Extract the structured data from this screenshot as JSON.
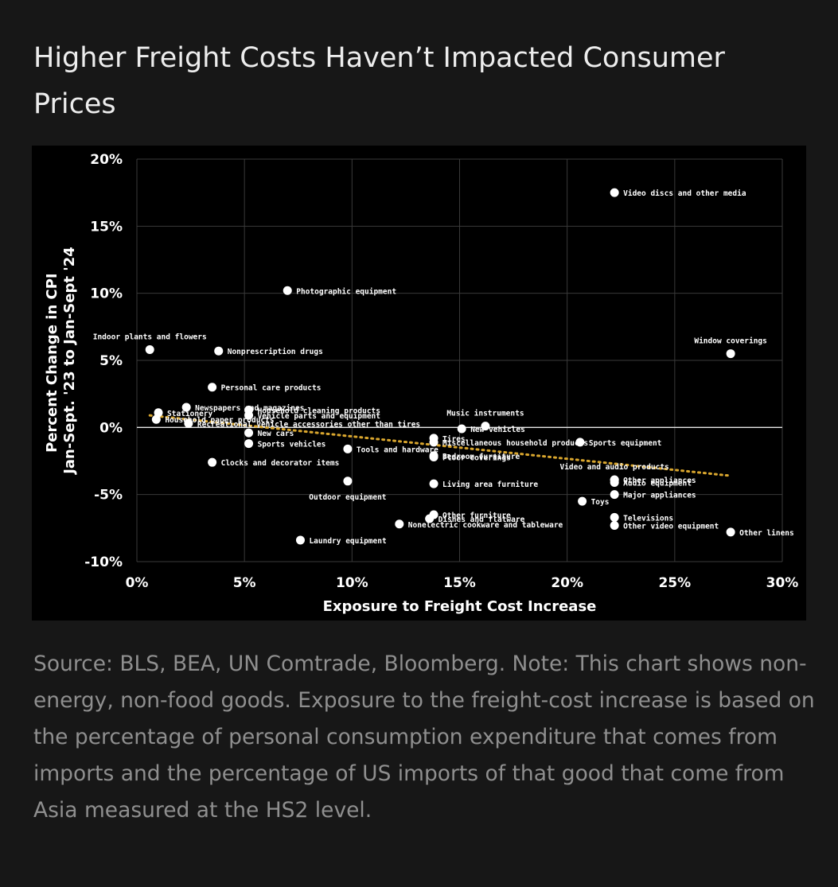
{
  "title": "Higher Freight Costs Haven’t Impacted Consumer Prices",
  "note": "Source: BLS, BEA, UN Comtrade, Bloomberg. Note: This chart shows non-energy, non-food goods. Exposure to the freight-cost increase is based on the percentage of personal consumption expenditure that comes from imports and the percentage of US imports of that good that come from Asia measured at the HS2 level.",
  "colors": {
    "background": "#171717",
    "plot": "#000000",
    "points": "#ffffff",
    "trendline": "#d9a62e",
    "title": "#ededed",
    "note": "#8f8f8f"
  },
  "chart_data": {
    "type": "scatter",
    "xlabel": "Exposure to Freight Cost Increase",
    "ylabel": [
      "Percent Change in CPI",
      "Jan-Sept. '23 to Jan-Sept '24"
    ],
    "xlim": [
      0,
      30
    ],
    "ylim": [
      -10,
      20
    ],
    "x_ticks": [
      0,
      5,
      10,
      15,
      20,
      25,
      30
    ],
    "y_ticks": [
      -10,
      -5,
      0,
      5,
      10,
      15,
      20
    ],
    "x_tick_labels": [
      "0%",
      "5%",
      "10%",
      "15%",
      "20%",
      "25%",
      "30%"
    ],
    "y_tick_labels": [
      "-10%",
      "-5%",
      "0%",
      "5%",
      "10%",
      "15%",
      "20%"
    ],
    "grid": true,
    "trendline": {
      "style": "dotted",
      "x": [
        0.6,
        27.6
      ],
      "y": [
        0.9,
        -3.6
      ]
    },
    "points": [
      {
        "label": "Video discs and other media",
        "x": 22.2,
        "y": 17.5
      },
      {
        "label": "Photographic equipment",
        "x": 7.0,
        "y": 10.2
      },
      {
        "label": "Indoor plants and flowers",
        "x": 0.6,
        "y": 5.8,
        "label_pos": "above"
      },
      {
        "label": "Nonprescription drugs",
        "x": 3.8,
        "y": 5.7
      },
      {
        "label": "Window coverings",
        "x": 27.6,
        "y": 5.5,
        "label_pos": "above"
      },
      {
        "label": "Personal care products",
        "x": 3.5,
        "y": 3.0
      },
      {
        "label": "Stationery",
        "x": 1.0,
        "y": 1.1
      },
      {
        "label": "Newspapers and magazines",
        "x": 2.3,
        "y": 1.5
      },
      {
        "label": "Household cleaning products",
        "x": 5.2,
        "y": 1.3
      },
      {
        "label": "Vehicle parts and equipment",
        "x": 5.2,
        "y": 0.9
      },
      {
        "label": "Household paper products",
        "x": 0.9,
        "y": 0.6
      },
      {
        "label": "Recreational vehicle accessories other than tires",
        "x": 2.4,
        "y": 0.3
      },
      {
        "label": "Music instruments",
        "x": 16.2,
        "y": 0.1,
        "label_pos": "above"
      },
      {
        "label": "New vehicles",
        "x": 15.1,
        "y": -0.1
      },
      {
        "label": "New cars",
        "x": 5.2,
        "y": -0.4
      },
      {
        "label": "Sports vehicles",
        "x": 5.2,
        "y": -1.2
      },
      {
        "label": "Tires",
        "x": 13.8,
        "y": -0.8
      },
      {
        "label": "Miscellaneous household products",
        "x": 13.8,
        "y": -1.1
      },
      {
        "label": "Sports equipment",
        "x": 20.6,
        "y": -1.1
      },
      {
        "label": "Tools and hardware",
        "x": 9.8,
        "y": -1.6
      },
      {
        "label": "Clocks and decorator items",
        "x": 3.5,
        "y": -2.6
      },
      {
        "label": "Bedroom furniture",
        "x": 13.8,
        "y": -2.1
      },
      {
        "label": "Floor coverings",
        "x": 13.8,
        "y": -2.2
      },
      {
        "label": "Video and audio products",
        "x": 22.2,
        "y": -3.9,
        "label_pos": "above"
      },
      {
        "label": "Other appliances",
        "x": 22.2,
        "y": -3.9
      },
      {
        "label": "Audio equipment",
        "x": 22.2,
        "y": -4.1
      },
      {
        "label": "Outdoor equipment",
        "x": 9.8,
        "y": -4.0,
        "label_pos": "below"
      },
      {
        "label": "Living area furniture",
        "x": 13.8,
        "y": -4.2
      },
      {
        "label": "Toys",
        "x": 20.7,
        "y": -5.5
      },
      {
        "label": "Major appliances",
        "x": 22.2,
        "y": -5.0
      },
      {
        "label": "Other furniture",
        "x": 13.8,
        "y": -6.5
      },
      {
        "label": "Dishes and flatware",
        "x": 13.6,
        "y": -6.8
      },
      {
        "label": "Nonelectric cookware and tableware",
        "x": 12.2,
        "y": -7.2
      },
      {
        "label": "Televisions",
        "x": 22.2,
        "y": -6.7
      },
      {
        "label": "Other video equipment",
        "x": 22.2,
        "y": -7.3
      },
      {
        "label": "Other linens",
        "x": 27.6,
        "y": -7.8
      },
      {
        "label": "Laundry equipment",
        "x": 7.6,
        "y": -8.4
      }
    ]
  }
}
